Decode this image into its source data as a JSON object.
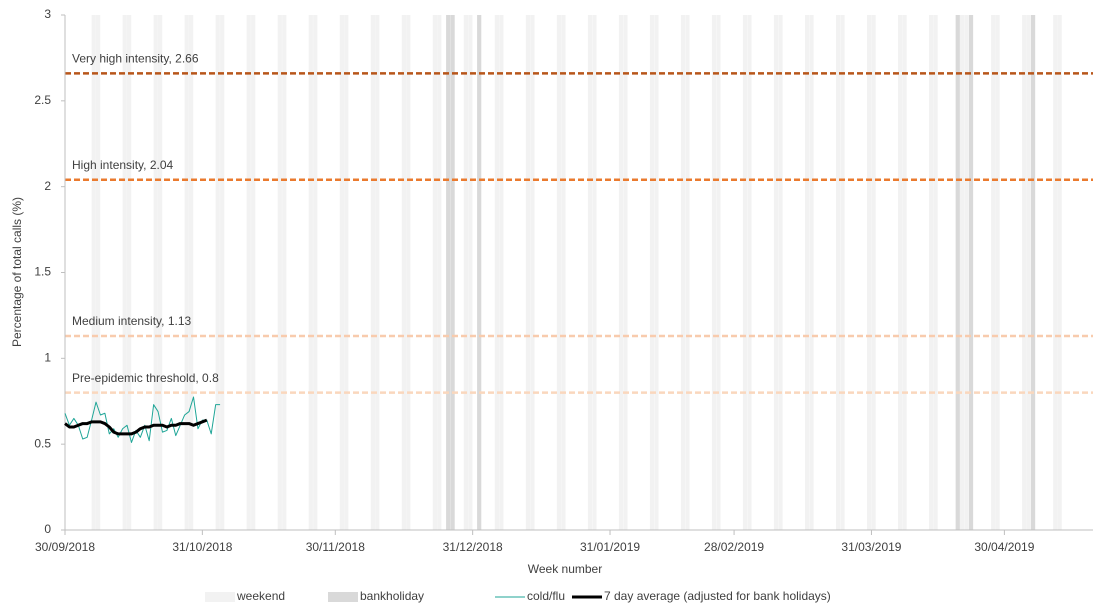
{
  "chart_data": {
    "type": "line",
    "y_label": "Percentage of total calls (%)",
    "x_label": "Week number",
    "xlim": [
      "30/09/2018",
      "20/05/2019"
    ],
    "xticks": [
      "30/09/2018",
      "31/10/2018",
      "30/11/2018",
      "31/12/2018",
      "31/01/2019",
      "28/02/2019",
      "31/03/2019",
      "30/04/2019"
    ],
    "ylim": [
      0,
      3
    ],
    "yticks": [
      0,
      0.5,
      1,
      1.5,
      2,
      2.5,
      3
    ],
    "thresholds": [
      {
        "label": "Very high intensity, 2.66",
        "value": 2.66,
        "color": "#b8561a"
      },
      {
        "label": "High intensity, 2.04",
        "value": 2.04,
        "color": "#ea7a2e"
      },
      {
        "label": "Medium intensity, 1.13",
        "value": 1.13,
        "color": "#f8cbad"
      },
      {
        "label": "Pre-epidemic threshold, 0.8",
        "value": 0.8,
        "color": "#fad7bd"
      }
    ],
    "x": [
      "30/09/2018",
      "01/10/2018",
      "02/10/2018",
      "03/10/2018",
      "04/10/2018",
      "05/10/2018",
      "06/10/2018",
      "07/10/2018",
      "08/10/2018",
      "09/10/2018",
      "10/10/2018",
      "11/10/2018",
      "12/10/2018",
      "13/10/2018",
      "14/10/2018",
      "15/10/2018",
      "16/10/2018",
      "17/10/2018",
      "18/10/2018",
      "19/10/2018",
      "20/10/2018",
      "21/10/2018",
      "22/10/2018",
      "23/10/2018",
      "24/10/2018",
      "25/10/2018",
      "26/10/2018",
      "27/10/2018",
      "28/10/2018",
      "29/10/2018",
      "30/10/2018",
      "31/10/2018",
      "01/11/2018",
      "02/11/2018",
      "03/11/2018",
      "04/11/2018"
    ],
    "series": [
      {
        "name": "weekend",
        "type": "band",
        "color": "#f2f2f2",
        "x": [
          "06/10/2018",
          "07/10/2018",
          "13/10/2018",
          "14/10/2018",
          "20/10/2018",
          "21/10/2018",
          "27/10/2018",
          "28/10/2018",
          "03/11/2018",
          "04/11/2018",
          "10/11/2018",
          "11/11/2018",
          "17/11/2018",
          "18/11/2018",
          "24/11/2018",
          "25/11/2018",
          "01/12/2018",
          "02/12/2018",
          "08/12/2018",
          "09/12/2018",
          "15/12/2018",
          "16/12/2018",
          "22/12/2018",
          "23/12/2018",
          "29/12/2018",
          "30/12/2018",
          "05/01/2019",
          "06/01/2019",
          "12/01/2019",
          "13/01/2019",
          "19/01/2019",
          "20/01/2019",
          "26/01/2019",
          "27/01/2019",
          "02/02/2019",
          "03/02/2019",
          "09/02/2019",
          "10/02/2019",
          "16/02/2019",
          "17/02/2019",
          "23/02/2019",
          "24/02/2019",
          "02/03/2019",
          "03/03/2019",
          "09/03/2019",
          "10/03/2019",
          "16/03/2019",
          "17/03/2019",
          "23/03/2019",
          "24/03/2019",
          "30/03/2019",
          "31/03/2019",
          "06/04/2019",
          "07/04/2019",
          "13/04/2019",
          "14/04/2019",
          "20/04/2019",
          "21/04/2019",
          "27/04/2019",
          "28/04/2019",
          "04/05/2019",
          "05/05/2019",
          "11/05/2019",
          "12/05/2019"
        ]
      },
      {
        "name": "bankholiday",
        "type": "band",
        "color": "#d9d9d9",
        "x": [
          "25/12/2018",
          "26/12/2018",
          "01/01/2019",
          "19/04/2019",
          "22/04/2019",
          "06/05/2019"
        ]
      },
      {
        "name": "cold/flu",
        "color": "#1fa597",
        "width": 1,
        "values": [
          0.68,
          0.61,
          0.65,
          0.61,
          0.53,
          0.54,
          0.64,
          0.745,
          0.67,
          0.68,
          0.56,
          0.59,
          0.54,
          0.59,
          0.61,
          0.51,
          0.58,
          0.54,
          0.61,
          0.52,
          0.73,
          0.69,
          0.57,
          0.58,
          0.65,
          0.55,
          0.61,
          0.67,
          0.69,
          0.775,
          0.59,
          0.64,
          0.64,
          0.56,
          0.73,
          0.73
        ]
      },
      {
        "name": "7 day average (adjusted for bank holidays)",
        "color": "#000000",
        "width": 3,
        "values": [
          0.62,
          0.6,
          0.6,
          0.61,
          0.62,
          0.62,
          0.63,
          0.63,
          0.63,
          0.62,
          0.6,
          0.57,
          0.56,
          0.56,
          0.56,
          0.56,
          0.57,
          0.59,
          0.6,
          0.6,
          0.61,
          0.61,
          0.61,
          0.6,
          0.61,
          0.61,
          0.62,
          0.62,
          0.62,
          0.61,
          0.62,
          0.63,
          0.64,
          null,
          null,
          null
        ]
      }
    ]
  }
}
